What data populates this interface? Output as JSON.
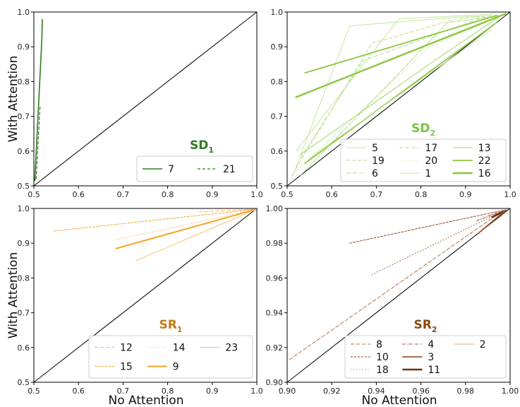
{
  "figure": {
    "ylabel_top": "With Attention",
    "ylabel_bottom": "With Attention",
    "xlabel_left": "No Attention",
    "xlabel_right": "No Attention"
  },
  "chart_data": [
    {
      "type": "line",
      "panel_label": "SD",
      "panel_subscript": "1",
      "title_color": "#2e7d1f",
      "xlabel": "",
      "ylabel": "With Attention",
      "xlim": [
        0.5,
        1.0
      ],
      "ylim": [
        0.5,
        1.0
      ],
      "xticks": [
        "0.5",
        "0.6",
        "0.7",
        "0.8",
        "0.9",
        "1.0"
      ],
      "yticks": [
        "0.5",
        "0.6",
        "0.7",
        "0.8",
        "0.9",
        "1.0"
      ],
      "diagonal": true,
      "legend_position": "bottom-right",
      "legend_columns": 2,
      "series": [
        {
          "name": "7",
          "color": "#2e7d1f",
          "dash": "",
          "width": 1.6,
          "x": [
            0.502,
            0.518,
            0.519
          ],
          "y": [
            0.515,
            0.925,
            0.978
          ]
        },
        {
          "name": "21",
          "color": "#2e7d1f",
          "dash": "4,3",
          "width": 1.2,
          "x": [
            0.505,
            0.514
          ],
          "y": [
            0.52,
            0.73
          ]
        }
      ]
    },
    {
      "type": "line",
      "panel_label": "SD",
      "panel_subscript": "2",
      "title_color": "#7cc242",
      "xlabel": "",
      "ylabel": "",
      "xlim": [
        0.5,
        1.0
      ],
      "ylim": [
        0.5,
        1.0
      ],
      "xticks": [
        "0.5",
        "0.6",
        "0.7",
        "0.8",
        "0.9",
        "1.0"
      ],
      "yticks": [
        "0.5",
        "0.6",
        "0.7",
        "0.8",
        "0.9",
        "1.0"
      ],
      "diagonal": true,
      "legend_position": "bottom-right",
      "legend_columns": 3,
      "series": [
        {
          "name": "5",
          "color": "#c8e6a0",
          "dash": "",
          "width": 1.0,
          "x": [
            0.51,
            0.64,
            0.88,
            0.96
          ],
          "y": [
            0.52,
            0.96,
            0.985,
            0.99
          ]
        },
        {
          "name": "19",
          "color": "#b9df8a",
          "dash": "5,3",
          "width": 1.0,
          "x": [
            0.52,
            0.69,
            0.88,
            0.96
          ],
          "y": [
            0.55,
            0.91,
            0.98,
            0.99
          ]
        },
        {
          "name": "6",
          "color": "#b9df8a",
          "dash": "6,3",
          "width": 1.0,
          "x": [
            0.53,
            0.67,
            0.93,
            0.98
          ],
          "y": [
            0.58,
            0.86,
            0.98,
            0.99
          ]
        },
        {
          "name": "17",
          "color": "#a9d572",
          "dash": "4,2,1,2",
          "width": 1.0,
          "x": [
            0.53,
            0.86,
            0.98
          ],
          "y": [
            0.53,
            0.97,
            0.99
          ]
        },
        {
          "name": "20",
          "color": "#b9df8a",
          "dash": "1,3",
          "width": 1.0,
          "x": [
            0.51,
            0.82,
            0.98
          ],
          "y": [
            0.53,
            0.9,
            0.99
          ]
        },
        {
          "name": "1",
          "color": "#c8e6a0",
          "dash": "",
          "width": 1.0,
          "x": [
            0.52,
            0.75,
            0.97
          ],
          "y": [
            0.6,
            0.98,
            0.995
          ]
        },
        {
          "name": "13",
          "color": "#a3d46a",
          "dash": "",
          "width": 1.0,
          "x": [
            0.53,
            0.83,
            0.98
          ],
          "y": [
            0.59,
            0.86,
            0.99
          ]
        },
        {
          "name": "22",
          "color": "#8cc63f",
          "dash": "",
          "width": 1.8,
          "x": [
            0.54,
            0.97
          ],
          "y": [
            0.825,
            0.99
          ]
        },
        {
          "name": "16",
          "color": "#8cc63f",
          "dash": "",
          "width": 2.4,
          "x": [
            0.52,
            0.99
          ],
          "y": [
            0.755,
            0.995
          ]
        }
      ],
      "extra_lines": [
        {
          "color": "#8cc63f",
          "width": 1.8,
          "x": [
            0.54,
            0.97
          ],
          "y": [
            0.565,
            0.97
          ]
        },
        {
          "color": "#c8e6a0",
          "width": 1.0,
          "x": [
            0.55,
            0.96
          ],
          "y": [
            0.58,
            0.95
          ]
        }
      ]
    },
    {
      "type": "line",
      "panel_label": "SR",
      "panel_subscript": "1",
      "title_color": "#c47a12",
      "xlabel": "No Attention",
      "ylabel": "With Attention",
      "xlim": [
        0.5,
        1.0
      ],
      "ylim": [
        0.5,
        1.0
      ],
      "xticks": [
        "0.5",
        "0.6",
        "0.7",
        "0.8",
        "0.9",
        "1.0"
      ],
      "yticks": [
        "0.5",
        "0.6",
        "0.7",
        "0.8",
        "0.9",
        "1.0"
      ],
      "diagonal": true,
      "legend_position": "bottom-right",
      "legend_columns": 3,
      "series": [
        {
          "name": "12",
          "color": "#f6b56a",
          "dash": "5,3",
          "width": 1.0,
          "x": [
            0.87,
            1.0
          ],
          "y": [
            0.99,
            0.998
          ]
        },
        {
          "name": "15",
          "color": "#f4a83a",
          "dash": "3,2",
          "width": 1.0,
          "x": [
            0.545,
            1.0
          ],
          "y": [
            0.935,
            0.998
          ]
        },
        {
          "name": "14",
          "color": "#f6b56a",
          "dash": "1,3",
          "width": 1.0,
          "x": [
            0.685,
            1.0
          ],
          "y": [
            0.91,
            0.998
          ]
        },
        {
          "name": "9",
          "color": "#f5a623",
          "dash": "",
          "width": 2.0,
          "x": [
            0.685,
            1.0
          ],
          "y": [
            0.885,
            0.998
          ]
        },
        {
          "name": "23",
          "color": "#f8c070",
          "dash": "",
          "width": 1.0,
          "x": [
            0.73,
            1.0
          ],
          "y": [
            0.85,
            0.998
          ]
        }
      ]
    },
    {
      "type": "line",
      "panel_label": "SR",
      "panel_subscript": "2",
      "title_color": "#8a4a12",
      "xlabel": "No Attention",
      "ylabel": "",
      "xlim": [
        0.9,
        1.0
      ],
      "ylim": [
        0.9,
        1.0
      ],
      "xticks": [
        "0.90",
        "0.92",
        "0.94",
        "0.96",
        "0.98",
        "1.00"
      ],
      "yticks": [
        "0.90",
        "0.92",
        "0.94",
        "0.96",
        "0.98",
        "1.00"
      ],
      "diagonal": true,
      "legend_position": "bottom-right",
      "legend_columns": 3,
      "series": [
        {
          "name": "8",
          "color": "#b5734a",
          "dash": "5,3",
          "width": 1.0,
          "x": [
            0.901,
            0.996
          ],
          "y": [
            0.913,
            0.998
          ]
        },
        {
          "name": "10",
          "color": "#8b4a2b",
          "dash": "3,2",
          "width": 1.0,
          "x": [
            0.928,
            0.997
          ],
          "y": [
            0.98,
            0.999
          ]
        },
        {
          "name": "18",
          "color": "#a0603a",
          "dash": "1,3",
          "width": 1.0,
          "x": [
            0.938,
            0.996
          ],
          "y": [
            0.962,
            0.998
          ]
        },
        {
          "name": "4",
          "color": "#8b4a2b",
          "dash": "4,2,1,2",
          "width": 1.0,
          "x": [
            0.985,
            0.998
          ],
          "y": [
            0.993,
            0.999
          ]
        },
        {
          "name": "3",
          "color": "#9a5530",
          "dash": "",
          "width": 1.8,
          "x": [
            0.986,
            0.998
          ],
          "y": [
            0.986,
            0.999
          ]
        },
        {
          "name": "11",
          "color": "#6b3410",
          "dash": "",
          "width": 2.6,
          "x": [
            0.992,
            0.998
          ],
          "y": [
            0.995,
            0.999
          ]
        },
        {
          "name": "2",
          "color": "#d2a98a",
          "dash": "",
          "width": 1.0,
          "x": [
            0.99,
            0.999
          ],
          "y": [
            0.996,
            0.9995
          ]
        }
      ]
    }
  ]
}
